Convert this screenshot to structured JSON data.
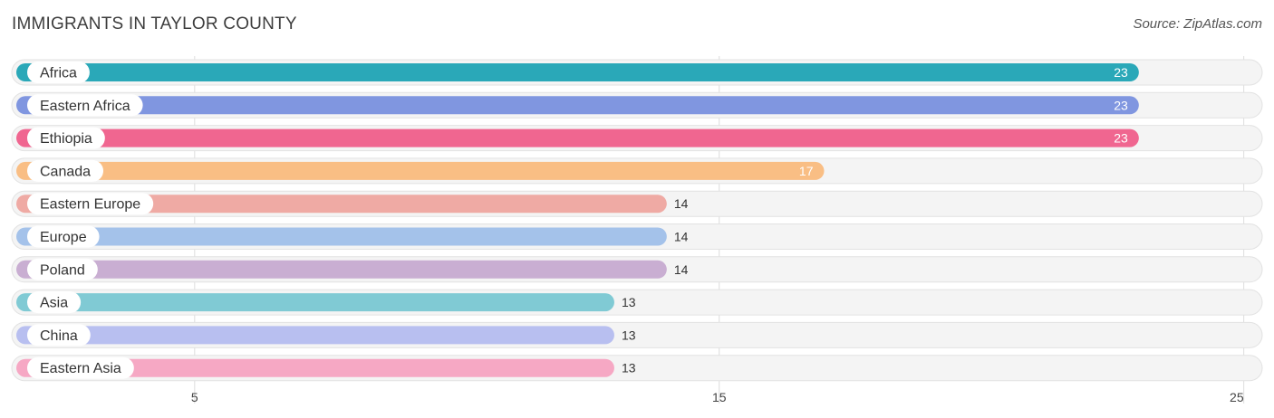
{
  "title": "IMMIGRANTS IN TAYLOR COUNTY",
  "source": "Source: ZipAtlas.com",
  "chart_data": {
    "type": "bar",
    "orientation": "horizontal",
    "title": "IMMIGRANTS IN TAYLOR COUNTY",
    "categories": [
      "Africa",
      "Eastern Africa",
      "Ethiopia",
      "Canada",
      "Eastern Europe",
      "Europe",
      "Poland",
      "Asia",
      "China",
      "Eastern Asia"
    ],
    "values": [
      23,
      23,
      23,
      17,
      14,
      14,
      14,
      13,
      13,
      13
    ],
    "colors": [
      "#2aa8b8",
      "#8096e0",
      "#f06690",
      "#f9be84",
      "#efaaa4",
      "#a4c2ea",
      "#c9aed2",
      "#80cad4",
      "#b8bff0",
      "#f6a8c4"
    ],
    "xlim": [
      1.6,
      25.3
    ],
    "xticks": [
      5,
      15,
      25
    ],
    "xlabel": "",
    "ylabel": "",
    "grid": true
  }
}
